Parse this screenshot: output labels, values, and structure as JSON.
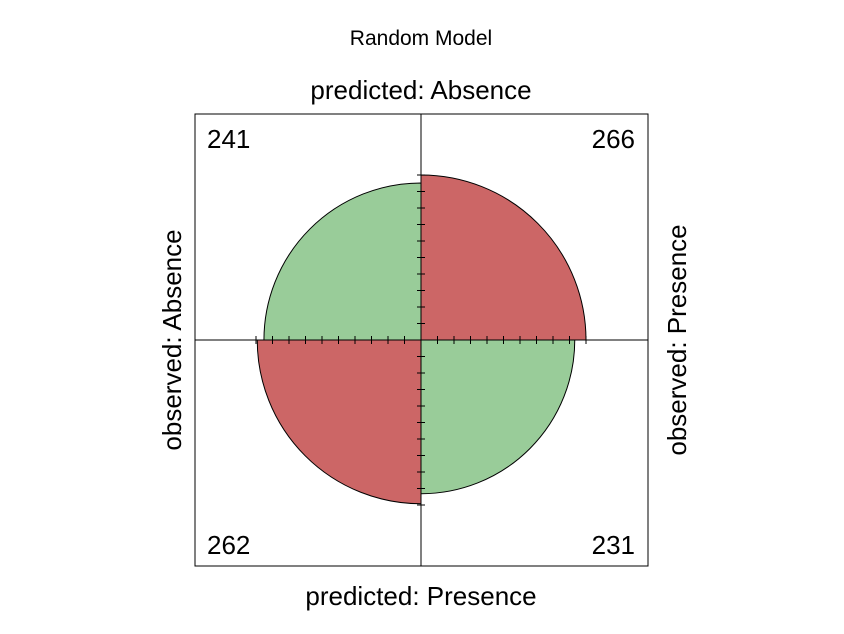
{
  "chart_data": {
    "type": "fourfold",
    "title": "Random Model",
    "top_label": "predicted: Absence",
    "bottom_label": "predicted: Presence",
    "left_label": "observed: Absence",
    "right_label": "observed: Presence",
    "cells": [
      {
        "name": "observed-absence-predicted-absence",
        "quadrant": "top-left",
        "value": 241,
        "color": "#99CC99"
      },
      {
        "name": "observed-presence-predicted-absence",
        "quadrant": "top-right",
        "value": 266,
        "color": "#CC6666"
      },
      {
        "name": "observed-absence-predicted-presence",
        "quadrant": "bottom-left",
        "value": 262,
        "color": "#CC6666"
      },
      {
        "name": "observed-presence-predicted-presence",
        "quadrant": "bottom-right",
        "value": 231,
        "color": "#99CC99"
      }
    ],
    "frame_color": "#000000"
  }
}
